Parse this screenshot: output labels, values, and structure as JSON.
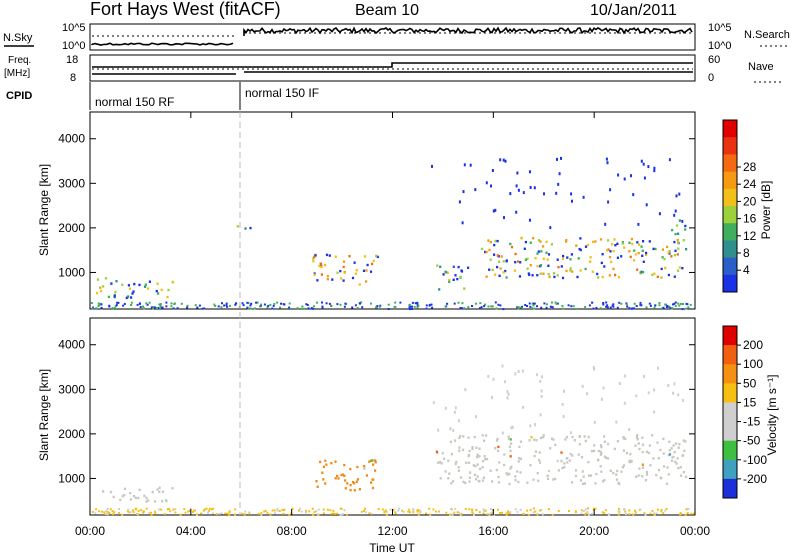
{
  "header": {
    "title": "Fort Hays West (fitACF)",
    "beam": "Beam 10",
    "date": "10/Jan/2011"
  },
  "param_panels": {
    "nsky_label": "N.Sky",
    "nsearch_label": "N.Search",
    "noise_ticks": [
      "10^5",
      "10^0"
    ],
    "freq_label_1": "Freq.",
    "freq_label_2": "[MHz]",
    "freq_ticks": [
      "18",
      "8"
    ],
    "nave_ticks": [
      "60",
      "0"
    ],
    "nave_label": "Nave",
    "cpid_label": "CPID",
    "cpid_segments": [
      {
        "label": "normal 150 RF",
        "start_hour": 0,
        "end_hour": 6
      },
      {
        "label": "normal 150 IF",
        "start_hour": 6,
        "end_hour": 24
      }
    ],
    "nave_step": {
      "before_value": 20,
      "after_value": 40,
      "change_hour": 12
    }
  },
  "chart_data": [
    {
      "type": "heatmap",
      "name": "Power",
      "xlabel": "",
      "ylabel": "Slant Range [km]",
      "ylim": [
        180,
        4600
      ],
      "xlim": [
        0,
        24
      ],
      "y_ticks": [
        "1000",
        "2000",
        "3000",
        "4000"
      ],
      "y_tick_values": [
        1000,
        2000,
        3000,
        4000
      ],
      "colorbar_label": "Power [dB]",
      "colorbar_ticks": [
        "4",
        "8",
        "12",
        "16",
        "20",
        "24",
        "28"
      ],
      "colorbar_colors": [
        "#1a32e6",
        "#2a5fc7",
        "#2f8f8f",
        "#3fae5f",
        "#9dd13c",
        "#f2c018",
        "#f59a12",
        "#f56a10",
        "#e83210",
        "#e00000"
      ],
      "regions": [
        {
          "x0": 0.1,
          "x1": 3.3,
          "y0": 450,
          "y1": 900,
          "level": 0.45
        },
        {
          "x0": 5.8,
          "x1": 6.4,
          "y0": 1950,
          "y1": 2150,
          "level": 0.25
        },
        {
          "x0": 8.8,
          "x1": 11.4,
          "y0": 750,
          "y1": 1450,
          "level": 0.6
        },
        {
          "x0": 13.7,
          "x1": 15.0,
          "y0": 600,
          "y1": 1200,
          "level": 0.35
        },
        {
          "x0": 15.5,
          "x1": 23.6,
          "y0": 900,
          "y1": 1800,
          "level": 0.55
        },
        {
          "x0": 23.0,
          "x1": 23.7,
          "y0": 1500,
          "y1": 2200,
          "level": 0.3
        }
      ]
    },
    {
      "type": "heatmap",
      "name": "Velocity",
      "xlabel": "Time UT",
      "ylabel": "Slant Range [km]",
      "ylim": [
        180,
        4600
      ],
      "xlim": [
        0,
        24
      ],
      "x_ticks": [
        "00:00",
        "04:00",
        "08:00",
        "12:00",
        "16:00",
        "20:00",
        "00:00"
      ],
      "x_tick_values": [
        0,
        4,
        8,
        12,
        16,
        20,
        24
      ],
      "y_ticks": [
        "1000",
        "2000",
        "3000",
        "4000"
      ],
      "y_tick_values": [
        1000,
        2000,
        3000,
        4000
      ],
      "colorbar_label": "Velocity [m s⁻¹]",
      "colorbar_ticks": [
        "200",
        "100",
        "50",
        "15",
        "-15",
        "-50",
        "-100",
        "-200"
      ],
      "colorbar_colors": [
        "#1c2fd8",
        "#3fa0c0",
        "#3fbf3f",
        "#cfcfcf",
        "#cfcfcf",
        "#f5c012",
        "#f59012",
        "#f06010",
        "#e00000"
      ],
      "regions": [
        {
          "x0": 0.2,
          "x1": 3.3,
          "y0": 500,
          "y1": 850,
          "color": "#c8c8c0"
        },
        {
          "x0": 8.8,
          "x1": 11.4,
          "y0": 750,
          "y1": 1450,
          "color": "#f08a1a"
        },
        {
          "x0": 13.7,
          "x1": 23.6,
          "y0": 900,
          "y1": 2000,
          "color": "#c8c8c0"
        }
      ]
    }
  ]
}
